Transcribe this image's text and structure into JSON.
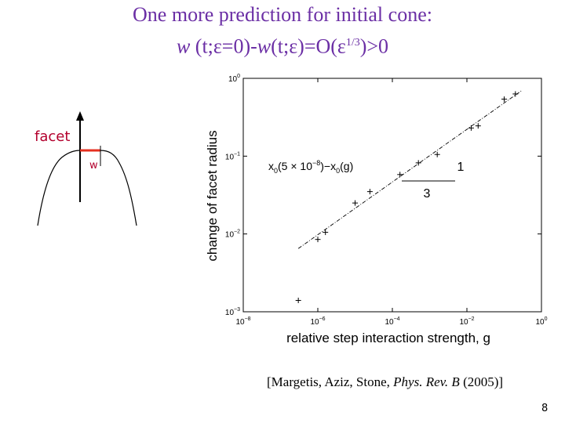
{
  "slide": {
    "title_line1": "One more prediction for initial cone:",
    "title_line2": {
      "w1": "w",
      "arg1": " (t;ε=0)-",
      "w2": "w",
      "arg2": "(t;ε)=O(ε",
      "exp": "1/3",
      "tail": ")>0"
    },
    "facet_label": "facet",
    "w_label": "w",
    "citation": {
      "open": "[Margetis, Aziz, Stone, ",
      "journal": "Phys. Rev. B",
      "close": " (2005)]"
    },
    "page_number": "8"
  },
  "colors": {
    "title": "#6b2fa5",
    "facet_segment": "#e53020",
    "label": "#b3002d",
    "ink": "#000000"
  },
  "chart_data": {
    "type": "scatter",
    "title": "",
    "xlabel": "relative step interaction  strength, g",
    "ylabel": "change of facet radius",
    "x_scale": "log",
    "y_scale": "log",
    "xlim": [
      1e-08,
      1
    ],
    "ylim": [
      0.001,
      1
    ],
    "x_ticks": [
      {
        "value": 1e-08,
        "base": "10",
        "exp": "−8"
      },
      {
        "value": 1e-06,
        "base": "10",
        "exp": "−6"
      },
      {
        "value": 0.0001,
        "base": "10",
        "exp": "−4"
      },
      {
        "value": 0.01,
        "base": "10",
        "exp": "−2"
      },
      {
        "value": 1,
        "base": "10",
        "exp": "0"
      }
    ],
    "y_ticks": [
      {
        "value": 0.001,
        "base": "10",
        "exp": "−3"
      },
      {
        "value": 0.01,
        "base": "10",
        "exp": "−2"
      },
      {
        "value": 0.1,
        "base": "10",
        "exp": "−1"
      },
      {
        "value": 1,
        "base": "10",
        "exp": "0"
      }
    ],
    "grid": false,
    "series": [
      {
        "name": "x0(5×10−8)−x0(g)",
        "marker": "+",
        "points": [
          {
            "x": 3e-07,
            "y": 0.0014
          },
          {
            "x": 1e-06,
            "y": 0.0085
          },
          {
            "x": 1.6e-06,
            "y": 0.0105
          },
          {
            "x": 1e-05,
            "y": 0.025
          },
          {
            "x": 2.5e-05,
            "y": 0.035
          },
          {
            "x": 0.00016,
            "y": 0.058
          },
          {
            "x": 0.0005,
            "y": 0.082
          },
          {
            "x": 0.0016,
            "y": 0.105
          },
          {
            "x": 0.013,
            "y": 0.23
          },
          {
            "x": 0.02,
            "y": 0.245
          },
          {
            "x": 0.1,
            "y": 0.54
          },
          {
            "x": 0.2,
            "y": 0.63
          }
        ]
      }
    ],
    "fit_line": {
      "style": "dash-dot",
      "x": [
        3e-07,
        0.3
      ],
      "y": [
        0.0065,
        0.7
      ]
    },
    "annotations": {
      "series_label": {
        "base": "x",
        "sub1": "0",
        "open": "(5 × 10",
        "exp": "−8",
        "mid": ")−x",
        "sub2": "0",
        "close": "(g)"
      },
      "slope_numerator": "1",
      "slope_denominator": "3"
    }
  }
}
